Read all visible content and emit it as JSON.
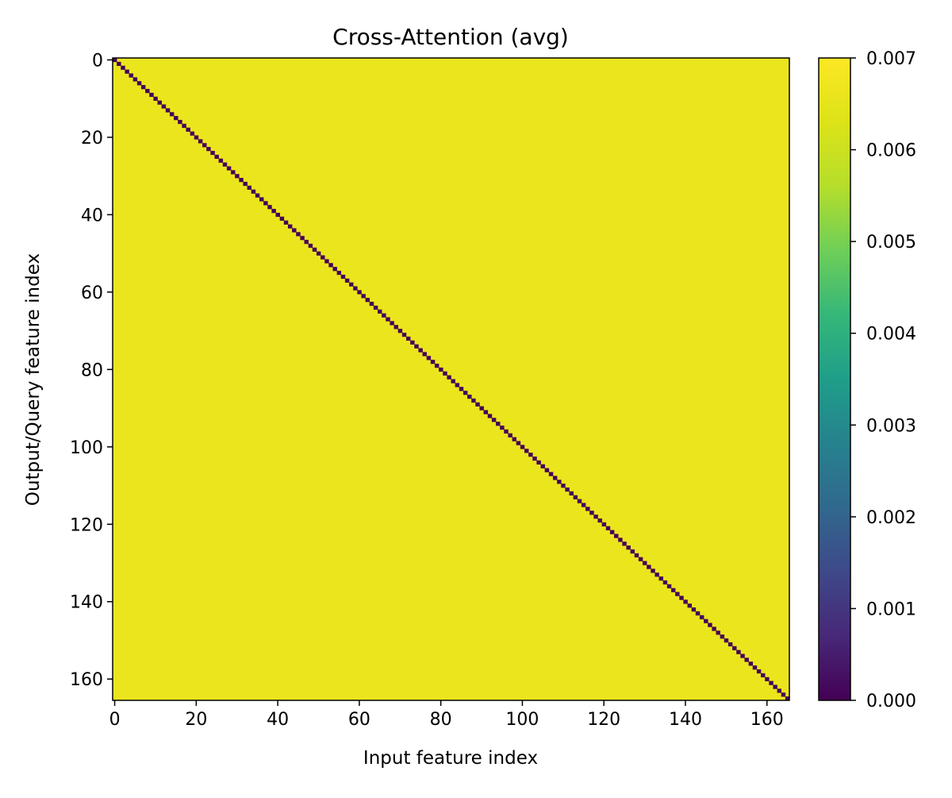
{
  "chart_data": {
    "type": "heatmap",
    "title": "Cross-Attention (avg)",
    "xlabel": "Input feature index",
    "ylabel": "Output/Query feature index",
    "n_rows": 166,
    "n_cols": 166,
    "xlim": [
      -0.5,
      165.5
    ],
    "ylim": [
      165.5,
      -0.5
    ],
    "x_ticks": [
      0,
      20,
      40,
      60,
      80,
      100,
      120,
      140,
      160
    ],
    "y_ticks": [
      0,
      20,
      40,
      60,
      80,
      100,
      120,
      140,
      160
    ],
    "off_diagonal_value": 0.0066,
    "diagonal_value": 0.0,
    "colorbar": {
      "colormap": "viridis",
      "min": 0.0,
      "max": 0.007,
      "ticks": [
        "0.000",
        "0.001",
        "0.002",
        "0.003",
        "0.004",
        "0.005",
        "0.006",
        "0.007"
      ]
    }
  }
}
